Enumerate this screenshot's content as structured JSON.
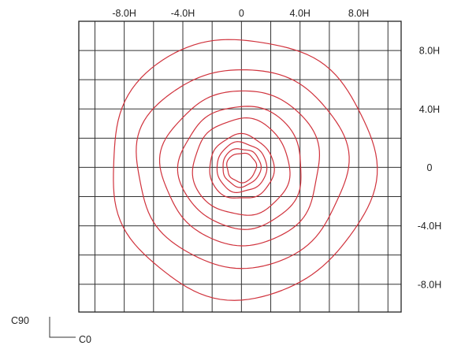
{
  "chart_data": {
    "type": "contour",
    "title": "",
    "x_ticks": [
      -8,
      -4,
      0,
      4,
      8
    ],
    "x_tick_labels": [
      "-8.0H",
      "-4.0H",
      "0",
      "4.0H",
      "8.0H"
    ],
    "y_ticks": [
      8,
      4,
      0,
      -4,
      -8
    ],
    "y_tick_labels": [
      "8.0H",
      "4.0H",
      "0",
      "-4.0H",
      "-8.0H"
    ],
    "xlim": [
      -11.1,
      10.9
    ],
    "ylim": [
      -9.9,
      10
    ],
    "grid": true,
    "grid_step": 2,
    "contour_color": "#d0323c",
    "contours": [
      {
        "rx": 1.0,
        "ry": 1.0,
        "wobble": 0.06
      },
      {
        "rx": 1.3,
        "ry": 1.3,
        "wobble": 0.07
      },
      {
        "rx": 1.7,
        "ry": 1.7,
        "wobble": 0.08
      },
      {
        "rx": 2.2,
        "ry": 2.2,
        "wobble": 0.1
      },
      {
        "rx": 3.3,
        "ry": 3.3,
        "wobble": 0.12
      },
      {
        "rx": 4.2,
        "ry": 4.2,
        "wobble": 0.14
      },
      {
        "rx": 5.4,
        "ry": 5.3,
        "wobble": 0.18
      },
      {
        "rx": 7.2,
        "ry": 6.8,
        "wobble": 0.22
      },
      {
        "rx": 9.0,
        "ry": 8.9,
        "wobble": 0.28
      }
    ]
  },
  "axis_legend": {
    "vertical_label": "C90",
    "horizontal_label": "C0"
  },
  "colors": {
    "grid": "#333333",
    "frame": "#222222",
    "text": "#222222"
  }
}
